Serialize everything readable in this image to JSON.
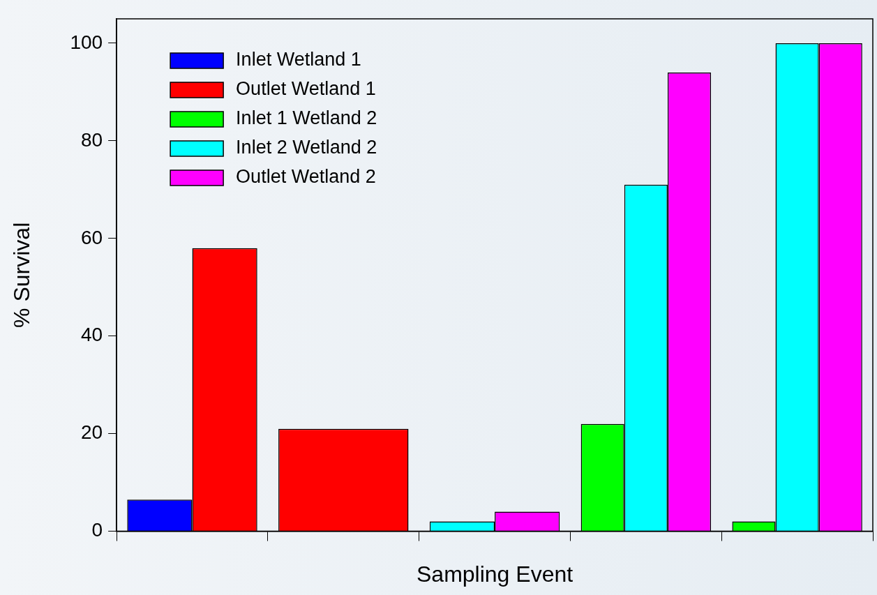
{
  "chart_data": {
    "type": "bar",
    "xlabel": "Sampling Event",
    "ylabel": "% Survival",
    "categories": [
      null,
      null,
      null,
      null,
      null
    ],
    "series": [
      {
        "name": "Inlet Wetland 1",
        "color": "#0000ff",
        "values": [
          6.5,
          null,
          null,
          null,
          null
        ]
      },
      {
        "name": "Outlet Wetland 1",
        "color": "#ff0000",
        "values": [
          58,
          21,
          null,
          null,
          null
        ]
      },
      {
        "name": "Inlet 1 Wetland 2",
        "color": "#00ff00",
        "values": [
          null,
          null,
          null,
          22,
          2
        ]
      },
      {
        "name": "Inlet 2 Wetland 2",
        "color": "#00ffff",
        "values": [
          null,
          null,
          2,
          71,
          100
        ]
      },
      {
        "name": "Outlet Wetland 2",
        "color": "#ff00ff",
        "values": [
          null,
          null,
          4,
          94,
          100
        ]
      }
    ],
    "ylim": [
      0,
      105
    ],
    "yticks": [
      0,
      20,
      40,
      60,
      80,
      100
    ],
    "grid": false,
    "legend": "top left",
    "tick_labels": "y"
  }
}
